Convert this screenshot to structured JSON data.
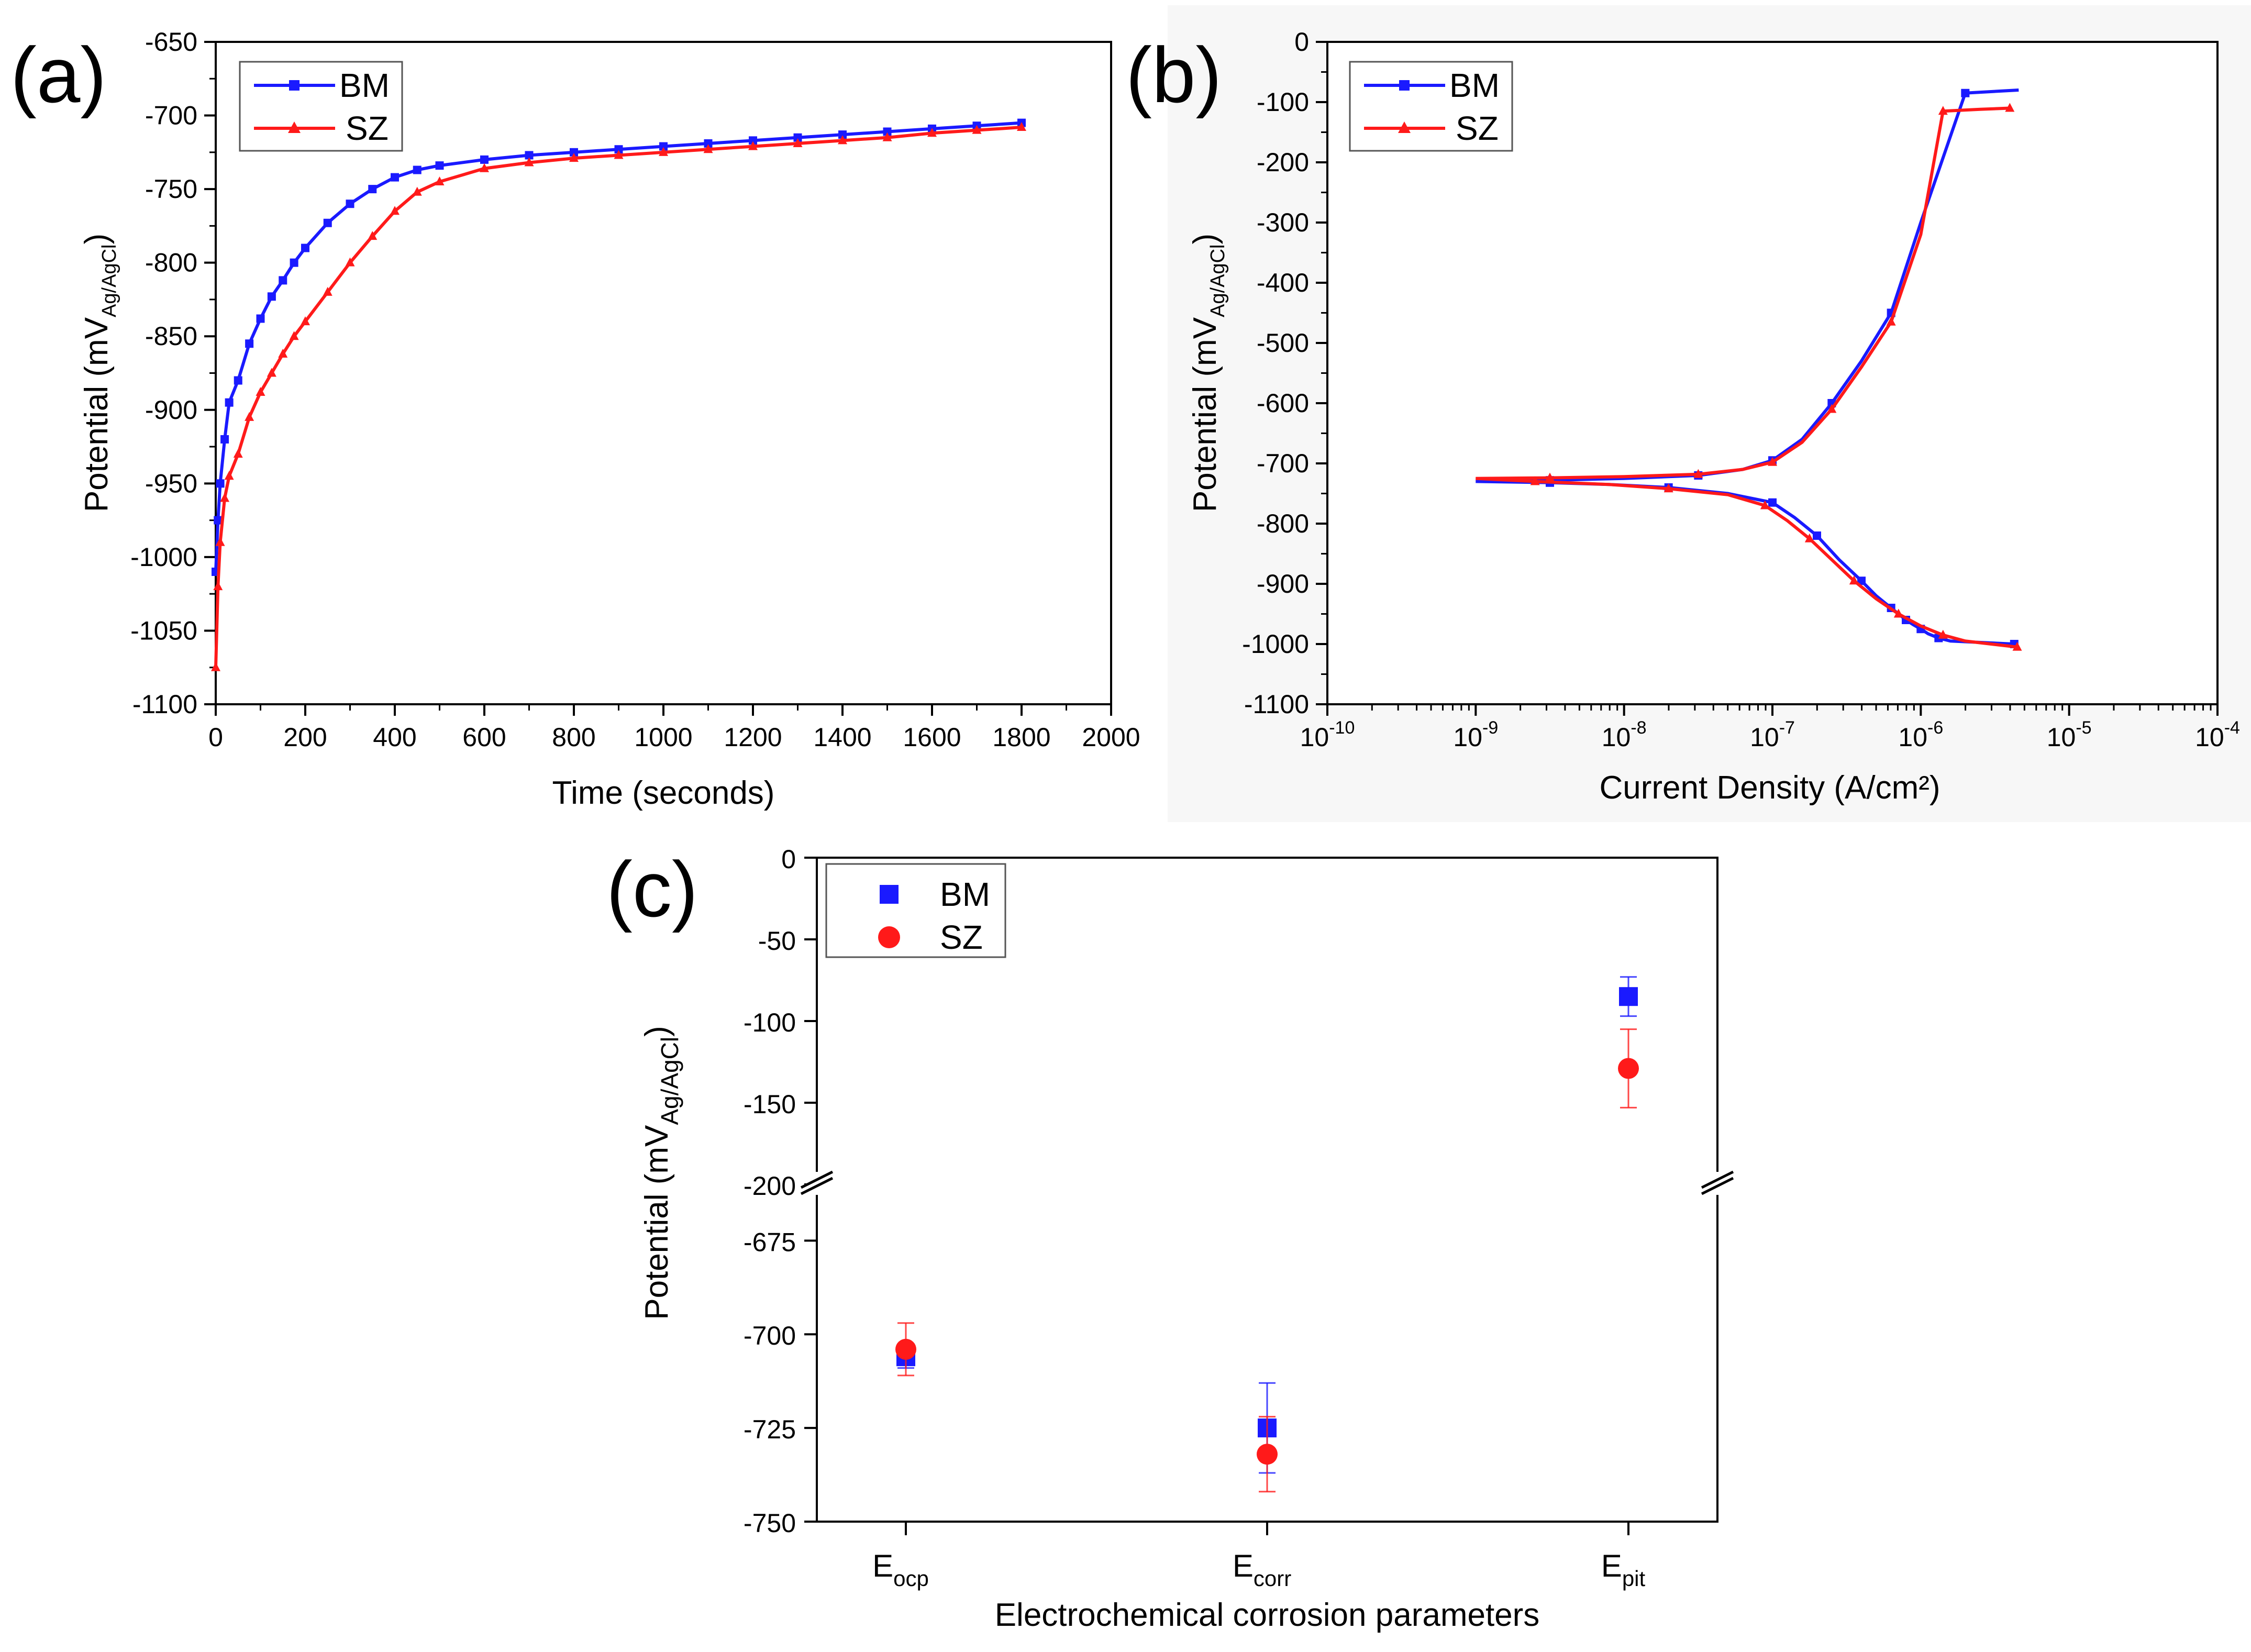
{
  "figure": {
    "colors": {
      "BM": "#1a1aff",
      "SZ": "#ff1a1a"
    }
  },
  "chart_data": [
    {
      "panel": "(a)",
      "type": "line",
      "xlabel": "Time (seconds)",
      "ylabel": "Potential (mV",
      "ylabel_sub": "Ag/AgCl",
      "ylabel_close": ")",
      "xlim": [
        0,
        2000
      ],
      "ylim": [
        -1100,
        -650
      ],
      "xticks": [
        "0",
        "200",
        "400",
        "600",
        "800",
        "1000",
        "1200",
        "1400",
        "1600",
        "1800",
        "2000"
      ],
      "yticks": [
        "-650",
        "-700",
        "-750",
        "-800",
        "-850",
        "-900",
        "-950",
        "-1000",
        "-1050",
        "-1100"
      ],
      "legend": [
        "BM",
        "SZ"
      ],
      "legend_position": "top-left",
      "series": [
        {
          "name": "BM",
          "x": [
            0,
            5,
            10,
            20,
            30,
            50,
            75,
            100,
            125,
            150,
            175,
            200,
            250,
            300,
            350,
            400,
            450,
            500,
            600,
            700,
            800,
            900,
            1000,
            1100,
            1200,
            1300,
            1400,
            1500,
            1600,
            1700,
            1800
          ],
          "y": [
            -1010,
            -975,
            -950,
            -920,
            -895,
            -880,
            -855,
            -838,
            -823,
            -812,
            -800,
            -790,
            -773,
            -760,
            -750,
            -742,
            -737,
            -734,
            -730,
            -727,
            -725,
            -723,
            -721,
            -719,
            -717,
            -715,
            -713,
            -711,
            -709,
            -707,
            -705
          ]
        },
        {
          "name": "SZ",
          "x": [
            0,
            5,
            10,
            20,
            30,
            50,
            75,
            100,
            125,
            150,
            175,
            200,
            250,
            300,
            350,
            400,
            450,
            500,
            600,
            700,
            800,
            900,
            1000,
            1100,
            1200,
            1300,
            1400,
            1500,
            1600,
            1700,
            1800
          ],
          "y": [
            -1075,
            -1020,
            -990,
            -960,
            -945,
            -930,
            -905,
            -888,
            -875,
            -862,
            -850,
            -840,
            -820,
            -800,
            -782,
            -765,
            -752,
            -745,
            -736,
            -732,
            -729,
            -727,
            -725,
            -723,
            -721,
            -719,
            -717,
            -715,
            -712,
            -710,
            -708
          ]
        }
      ]
    },
    {
      "panel": "(b)",
      "type": "line",
      "xlabel": "Current Density (A/cm²)",
      "ylabel": "Potential (mV",
      "ylabel_sub": "Ag/AgCl",
      "ylabel_close": ")",
      "xscale": "log",
      "xlim_exp": [
        -10,
        -4
      ],
      "ylim": [
        -1100,
        0
      ],
      "xtick_base": "10",
      "xtick_exponents": [
        "-10",
        "-9",
        "-8",
        "-7",
        "-6",
        "-5",
        "-4"
      ],
      "yticks": [
        "0",
        "-100",
        "-200",
        "-300",
        "-400",
        "-500",
        "-600",
        "-700",
        "-800",
        "-900",
        "-1000",
        "-1100"
      ],
      "legend": [
        "BM",
        "SZ"
      ],
      "legend_position": "top-left",
      "series": [
        {
          "name": "BM",
          "log10_current": [
            -5.37,
            -5.8,
            -5.88,
            -5.95,
            -6.0,
            -6.05,
            -6.1,
            -6.15,
            -6.2,
            -6.3,
            -6.4,
            -6.55,
            -6.7,
            -6.85,
            -7.0,
            -7.3,
            -7.7,
            -8.1,
            -8.5,
            -9.0,
            -8.5,
            -8.0,
            -7.5,
            -7.2,
            -7.0,
            -6.8,
            -6.6,
            -6.4,
            -6.2,
            -6.0,
            -5.7,
            -5.34
          ],
          "potential": [
            -1000,
            -995,
            -990,
            -983,
            -975,
            -968,
            -960,
            -950,
            -940,
            -920,
            -895,
            -860,
            -820,
            -790,
            -765,
            -750,
            -740,
            -735,
            -732,
            -730,
            -728,
            -725,
            -720,
            -710,
            -695,
            -660,
            -600,
            -530,
            -450,
            -300,
            -85,
            -80
          ]
        },
        {
          "name": "SZ",
          "log10_current": [
            -5.35,
            -5.7,
            -5.85,
            -6.0,
            -6.15,
            -6.3,
            -6.45,
            -6.6,
            -6.75,
            -6.9,
            -7.05,
            -7.3,
            -7.7,
            -8.1,
            -8.6,
            -9.0,
            -8.5,
            -8.0,
            -7.5,
            -7.2,
            -7.0,
            -6.8,
            -6.6,
            -6.4,
            -6.2,
            -6.0,
            -5.85,
            -5.6,
            -5.4
          ],
          "potential": [
            -1005,
            -995,
            -985,
            -970,
            -950,
            -925,
            -895,
            -860,
            -825,
            -795,
            -770,
            -752,
            -742,
            -735,
            -730,
            -725,
            -724,
            -722,
            -718,
            -710,
            -698,
            -665,
            -610,
            -540,
            -465,
            -320,
            -115,
            -112,
            -110
          ]
        }
      ]
    },
    {
      "panel": "(c)",
      "type": "scatter",
      "xlabel": "Electrochemical corrosion parameters",
      "ylabel": "Potential (mV",
      "ylabel_sub": "Ag/AgCl",
      "ylabel_close": ")",
      "y_axis_break": true,
      "upper_ylim": [
        -200,
        0
      ],
      "lower_ylim": [
        -750,
        -660
      ],
      "upper_yticks": [
        "0",
        "-50",
        "-100",
        "-150",
        "-200"
      ],
      "lower_yticks": [
        "-675",
        "-700",
        "-725",
        "-750"
      ],
      "categories": [
        {
          "main": "E",
          "sub": "ocp"
        },
        {
          "main": "E",
          "sub": "corr"
        },
        {
          "main": "E",
          "sub": "pit"
        }
      ],
      "legend": [
        "BM",
        "SZ"
      ],
      "legend_position": "top-left",
      "series": [
        {
          "name": "BM",
          "marker": "square",
          "values": [
            -706,
            -725,
            -85
          ],
          "errors": [
            3,
            12,
            12
          ]
        },
        {
          "name": "SZ",
          "marker": "circle",
          "values": [
            -704,
            -732,
            -129
          ],
          "errors": [
            7,
            10,
            24
          ]
        }
      ]
    }
  ]
}
